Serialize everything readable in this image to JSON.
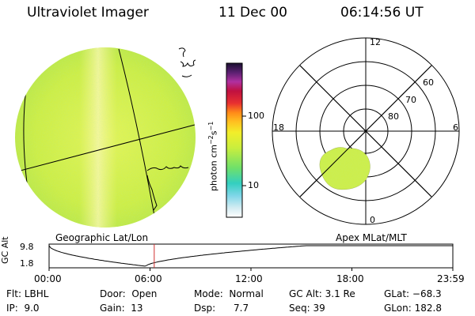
{
  "header": {
    "title": "Ultraviolet Imager",
    "date": "11 Dec 00",
    "time": "06:14:56 UT"
  },
  "colorbar": {
    "tick_100": "100",
    "tick_10": "10",
    "unit_prefix": "photon cm",
    "unit_exp1": "−2",
    "unit_mid": "s",
    "unit_exp2": "−1"
  },
  "panels": {
    "geo_label": "Geographic Lat/Lon",
    "apex_label": "Apex MLat/MLT"
  },
  "polar": {
    "mlt_labels": [
      "12",
      "18",
      "6",
      "0"
    ],
    "lat_labels": [
      "60",
      "70",
      "80"
    ]
  },
  "altitude_plot": {
    "axis_label": "GC Alt",
    "y_ticks": [
      "9.8",
      "1.8"
    ],
    "x_ticks": [
      "00:00",
      "06:00",
      "12:00",
      "18:00",
      "23:59"
    ],
    "current_time_hours": 6.25
  },
  "info": {
    "filter": {
      "label": "Flt:",
      "value": "LBHL"
    },
    "ip": {
      "label": "IP:",
      "value": "9.0"
    },
    "door": {
      "label": "Door:",
      "value": "Open"
    },
    "gain": {
      "label": "Gain:",
      "value": "13"
    },
    "mode": {
      "label": "Mode:",
      "value": "Normal"
    },
    "dsp": {
      "label": "Dsp:",
      "value": "7.7"
    },
    "gcalt": {
      "label": "GC Alt:",
      "value": "3.1 Re"
    },
    "seq": {
      "label": "Seq:",
      "value": "39"
    },
    "glat": {
      "label": "GLat:",
      "value": "−68.3"
    },
    "glon": {
      "label": "GLon:",
      "value": "182.8"
    }
  },
  "colors": {
    "disk_base": "#d9f04a",
    "auroral_oval": "#c8ee4a",
    "time_marker": "#d03030"
  }
}
